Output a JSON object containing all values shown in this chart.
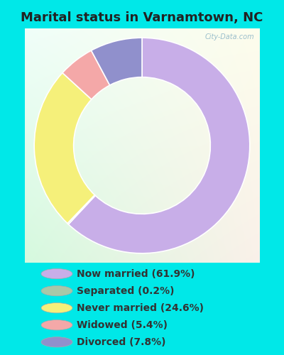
{
  "title": "Marital status in Varnamtown, NC",
  "slices": [
    61.9,
    0.2,
    24.6,
    5.4,
    7.8
  ],
  "labels": [
    "Now married (61.9%)",
    "Separated (0.2%)",
    "Never married (24.6%)",
    "Widowed (5.4%)",
    "Divorced (7.8%)"
  ],
  "colors": [
    "#c8aee8",
    "#a8c8a8",
    "#f5f07a",
    "#f4a8a8",
    "#9090cc"
  ],
  "cyan_bg": "#00e8e8",
  "title_color": "#222222",
  "title_fontsize": 13,
  "donut_width": 0.42,
  "watermark": "City-Data.com",
  "legend_fontsize": 10,
  "legend_text_color": "#333333"
}
